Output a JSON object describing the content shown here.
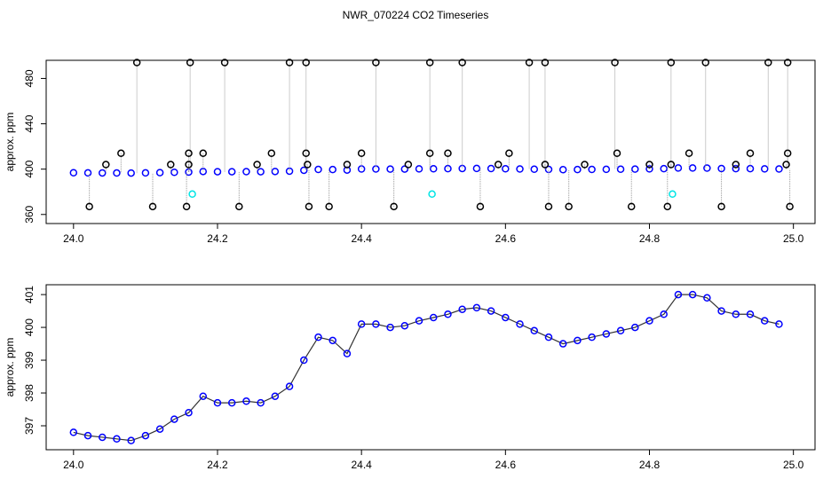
{
  "chart_data": [
    {
      "type": "scatter",
      "title": "NWR_070224  CO2 Timeseries",
      "y_label": "approx. ppm",
      "xlim": [
        23.962,
        25.03
      ],
      "ylim": [
        352,
        496
      ],
      "xticks": [
        {
          "value": 24,
          "label": "24.0"
        },
        {
          "value": 24.2,
          "label": "24.2"
        },
        {
          "value": 24.4,
          "label": "24.4"
        },
        {
          "value": 24.6,
          "label": "24.6"
        },
        {
          "value": 24.8,
          "label": "24.8"
        },
        {
          "value": 25,
          "label": "25.0"
        }
      ],
      "yticks": [
        360,
        400,
        440,
        480
      ],
      "series": [
        {
          "color": "#0000ff",
          "drop": false,
          "x": [
            24.0,
            24.02,
            24.04,
            24.06,
            24.08,
            24.1,
            24.12,
            24.14,
            24.16,
            24.18,
            24.2,
            24.22,
            24.24,
            24.26,
            24.28,
            24.3,
            24.32,
            24.34,
            24.36,
            24.38,
            24.4,
            24.42,
            24.44,
            24.46,
            24.48,
            24.5,
            24.52,
            24.54,
            24.56,
            24.58,
            24.6,
            24.62,
            24.64,
            24.66,
            24.68,
            24.7,
            24.72,
            24.74,
            24.76,
            24.78,
            24.8,
            24.82,
            24.84,
            24.86,
            24.88,
            24.9,
            24.92,
            24.94,
            24.96,
            24.98
          ],
          "values": [
            396.8,
            396.7,
            396.65,
            396.6,
            396.55,
            396.7,
            396.9,
            397.2,
            397.4,
            397.9,
            397.7,
            397.7,
            397.75,
            397.7,
            397.9,
            398.2,
            399.0,
            399.7,
            399.6,
            399.2,
            400.1,
            400.1,
            400.0,
            400.05,
            400.2,
            400.3,
            400.4,
            400.55,
            400.6,
            400.5,
            400.3,
            400.1,
            399.9,
            399.7,
            399.5,
            399.6,
            399.7,
            399.8,
            399.9,
            400.0,
            400.2,
            400.4,
            401.0,
            401.0,
            400.9,
            400.5,
            400.4,
            400.4,
            400.2,
            400.1
          ]
        },
        {
          "color": "#000000",
          "drop": true,
          "x": [
            24.088,
            24.162,
            24.21,
            24.3,
            24.323,
            24.42,
            24.495,
            24.54,
            24.633,
            24.655,
            24.752,
            24.83,
            24.878,
            24.965,
            24.992,
            24.022,
            24.11,
            24.157,
            24.23,
            24.327,
            24.355,
            24.445,
            24.565,
            24.66,
            24.688,
            24.775,
            24.825,
            24.9,
            24.995,
            24.066,
            24.16,
            24.18,
            24.275,
            24.323,
            24.4,
            24.495,
            24.52,
            24.605,
            24.755,
            24.855,
            24.94,
            24.992,
            24.045,
            24.135,
            24.16,
            24.255,
            24.325,
            24.38,
            24.465,
            24.59,
            24.655,
            24.71,
            24.8,
            24.83,
            24.92,
            24.99
          ],
          "values": [
            494,
            494,
            494,
            494,
            494,
            494,
            494,
            494,
            494,
            494,
            494,
            494,
            494,
            494,
            494,
            367,
            367,
            367,
            367,
            367,
            367,
            367,
            367,
            367,
            367,
            367,
            367,
            367,
            367,
            414,
            414,
            414,
            414,
            414,
            414,
            414,
            414,
            414,
            414,
            414,
            414,
            414,
            404,
            404,
            404,
            404,
            404,
            404,
            404,
            404,
            404,
            404,
            404,
            404,
            404,
            404
          ]
        },
        {
          "color": "#00e5e5",
          "drop": false,
          "x": [
            24.165,
            24.498,
            24.832
          ],
          "values": [
            378,
            378,
            378
          ]
        }
      ]
    },
    {
      "type": "scatter",
      "y_label": "approx. ppm",
      "xlim": [
        23.962,
        25.03
      ],
      "ylim": [
        396.27,
        401.3
      ],
      "xticks": [
        {
          "value": 24,
          "label": "24.0"
        },
        {
          "value": 24.2,
          "label": "24.2"
        },
        {
          "value": 24.4,
          "label": "24.4"
        },
        {
          "value": 24.6,
          "label": "24.6"
        },
        {
          "value": 24.8,
          "label": "24.8"
        },
        {
          "value": 25,
          "label": "25.0"
        }
      ],
      "yticks": [
        397,
        398,
        399,
        400,
        401
      ],
      "series": [
        {
          "color": "#0000ff",
          "line_color": "#333333",
          "drop": false,
          "x": [
            24.0,
            24.02,
            24.04,
            24.06,
            24.08,
            24.1,
            24.12,
            24.14,
            24.16,
            24.18,
            24.2,
            24.22,
            24.24,
            24.26,
            24.28,
            24.3,
            24.32,
            24.34,
            24.36,
            24.38,
            24.4,
            24.42,
            24.44,
            24.46,
            24.48,
            24.5,
            24.52,
            24.54,
            24.56,
            24.58,
            24.6,
            24.62,
            24.64,
            24.66,
            24.68,
            24.7,
            24.72,
            24.74,
            24.76,
            24.78,
            24.8,
            24.82,
            24.84,
            24.86,
            24.88,
            24.9,
            24.92,
            24.94,
            24.96,
            24.98
          ],
          "values": [
            396.8,
            396.7,
            396.65,
            396.6,
            396.55,
            396.7,
            396.9,
            397.2,
            397.4,
            397.9,
            397.7,
            397.7,
            397.75,
            397.7,
            397.9,
            398.2,
            399.0,
            399.7,
            399.6,
            399.2,
            400.1,
            400.1,
            400.0,
            400.05,
            400.2,
            400.3,
            400.4,
            400.55,
            400.6,
            400.5,
            400.3,
            400.1,
            399.9,
            399.7,
            399.5,
            399.6,
            399.7,
            399.8,
            399.9,
            400.0,
            400.2,
            400.4,
            401.0,
            401.0,
            400.9,
            400.5,
            400.4,
            400.4,
            400.2,
            400.1
          ]
        }
      ]
    }
  ]
}
